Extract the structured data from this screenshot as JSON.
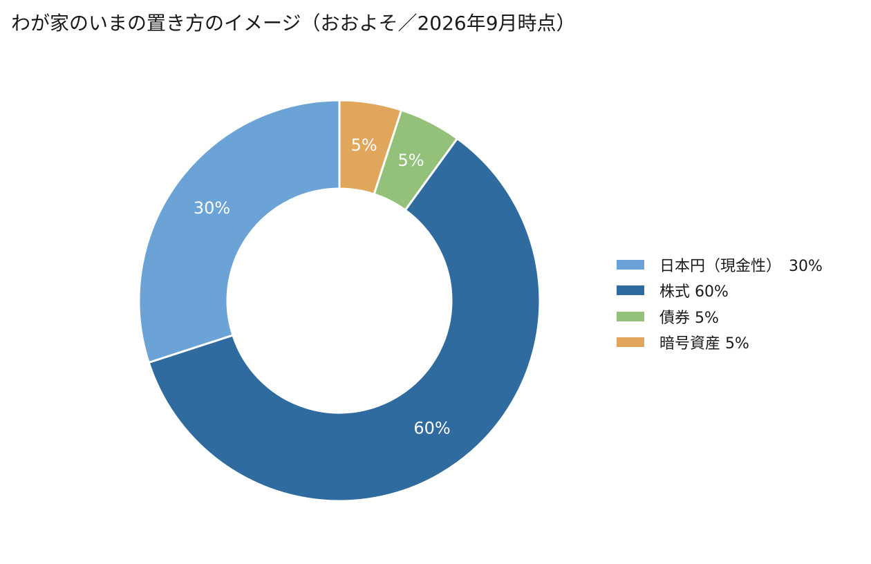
{
  "chart_data": {
    "type": "pie",
    "style": "donut",
    "title": "わが家のいまの置き方のイメージ（おおよそ／2026年9月時点）",
    "unit": "%",
    "categories": [
      "日本円（現金性）",
      "株式",
      "債券",
      "暗号資産"
    ],
    "values": [
      30,
      60,
      5,
      5
    ],
    "data_labels": [
      "30%",
      "60%",
      "5%",
      "5%"
    ],
    "legend_labels": [
      "日本円（現金性）　30%",
      "株式 60%",
      "債券 5%",
      "暗号資産 5%"
    ],
    "colors": [
      "#6ca3d6",
      "#2f6b9e",
      "#93c17a",
      "#e0a65c"
    ],
    "label_color": "#ffffff",
    "start_angle_deg": 0,
    "direction": "counterclockwise",
    "legend_position": "right"
  }
}
